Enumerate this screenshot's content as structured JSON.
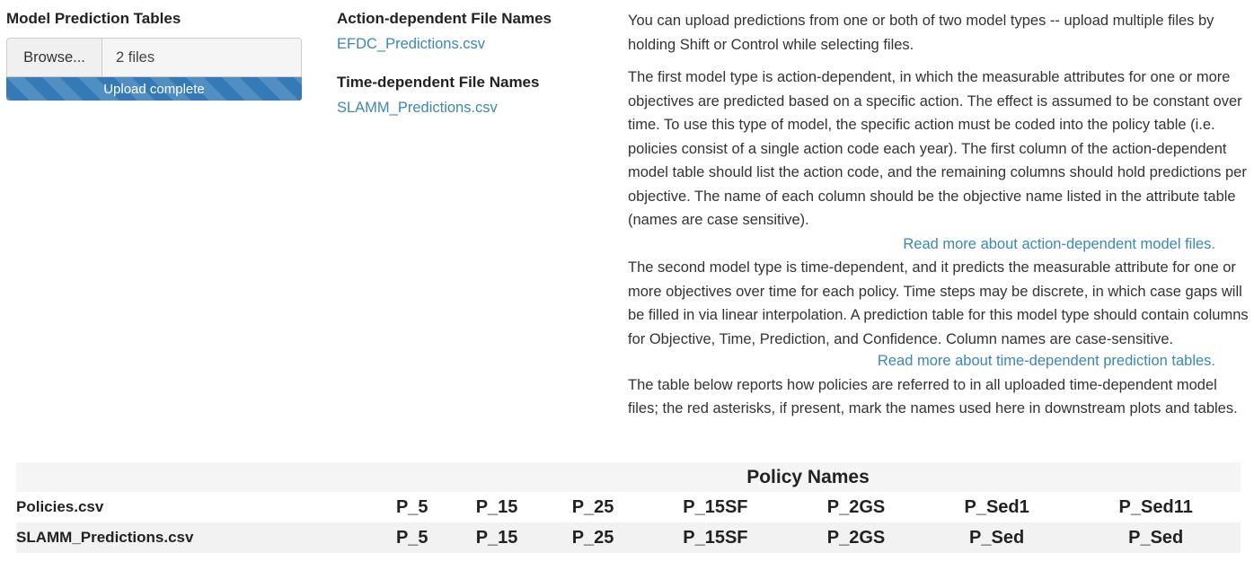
{
  "upload": {
    "title": "Model Prediction Tables",
    "browse_label": "Browse...",
    "file_count": "2 files",
    "progress_text": "Upload complete",
    "progress_fraction": 1.0
  },
  "filenames": {
    "action_title": "Action-dependent File Names",
    "action_files": [
      "EFDC_Predictions.csv"
    ],
    "time_title": "Time-dependent File Names",
    "time_files": [
      "SLAMM_Predictions.csv"
    ]
  },
  "help": {
    "p1": "You can upload predictions from one or both of two model types -- upload multiple files by holding Shift or Control while selecting files.",
    "p2": "The first model type is action-dependent, in which the measurable attributes for one or more objectives are predicted based on a specific action. The effect is assumed to be constant over time. To use this type of model, the specific action must be coded into the policy table (i.e. policies consist of a single action code each year). The first column of the action-dependent model table should list the action code, and the remaining columns should hold predictions per objective. The name of each column should be the objective name listed in the attribute table (names are case sensitive).",
    "link1": "Read more about action-dependent model files.",
    "p3": "The second model type is time-dependent, and it predicts the measurable attribute for one or more objectives over time for each policy. Time steps may be discrete, in which case gaps will be filled in via linear interpolation. A prediction table for this model type should contain columns for Objective, Time, Prediction, and Confidence. Column names are case-sensitive.",
    "link2": "Read more about time-dependent prediction tables.",
    "p4": "The table below reports how policies are referred to in all uploaded time-dependent model files; the red asterisks, if present, mark the names used here in downstream plots and tables."
  },
  "policy_table": {
    "header": "Policy Names",
    "rows": [
      {
        "name": "Policies.csv",
        "values": [
          "P_5",
          "P_15",
          "P_25",
          "P_15SF",
          "P_2GS",
          "P_Sed1",
          "P_Sed11"
        ]
      },
      {
        "name": "SLAMM_Predictions.csv",
        "values": [
          "P_5",
          "P_15",
          "P_25",
          "P_15SF",
          "P_2GS",
          "P_Sed",
          "P_Sed"
        ]
      }
    ]
  }
}
